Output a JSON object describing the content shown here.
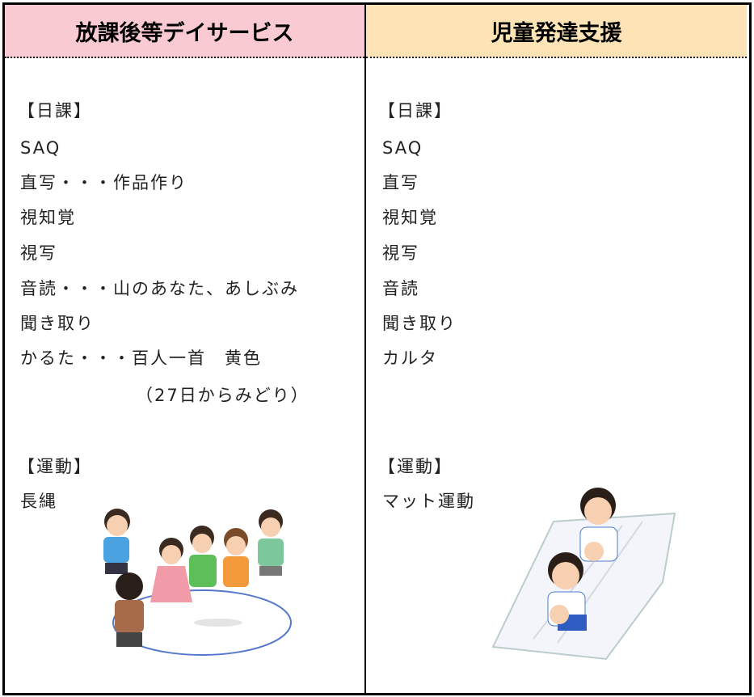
{
  "columns": [
    {
      "header": "放課後等デイサービス",
      "schedule": {
        "heading": "【日課】",
        "items": [
          "SAQ",
          "直写・・・作品作り",
          "視知覚",
          "視写",
          "音読・・・山のあなた、あしぶみ",
          "聞き取り",
          "かるた・・・百人一首　黄色",
          "（27日からみどり）"
        ]
      },
      "exercise": {
        "heading": "【運動】",
        "items": [
          "長縄"
        ]
      }
    },
    {
      "header": "児童発達支援",
      "schedule": {
        "heading": "【日課】",
        "items": [
          "SAQ",
          "直写",
          "視知覚",
          "視写",
          "音読",
          "聞き取り",
          "カルタ"
        ]
      },
      "exercise": {
        "heading": "【運動】",
        "items": [
          "マット運動"
        ]
      }
    }
  ]
}
